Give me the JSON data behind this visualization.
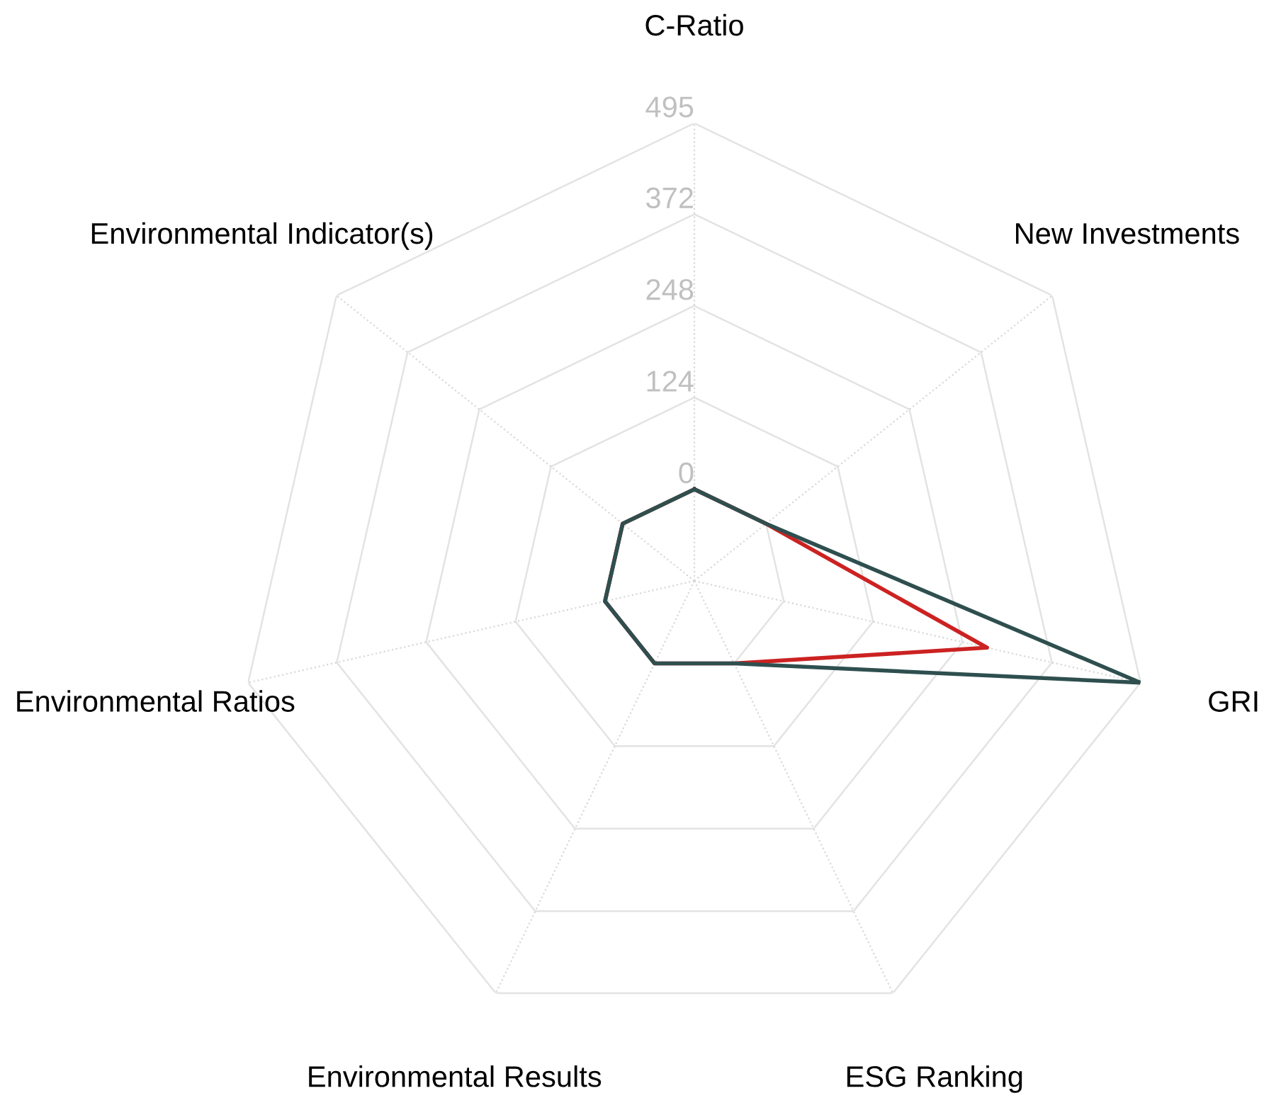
{
  "chart_data": {
    "type": "radar",
    "categories": [
      "C-Ratio",
      "New Investments",
      "GRI",
      "ESG Ranking",
      "Environmental Results",
      "Environmental Ratios",
      "Environmental Indicator(s)"
    ],
    "series": [
      {
        "color": "#cc2222",
        "values": [
          0,
          0,
          282,
          0,
          0,
          0,
          0
        ]
      },
      {
        "color": "#2f4f4f",
        "values": [
          0,
          0,
          495,
          0,
          0,
          0,
          0
        ]
      }
    ],
    "ylim": [
      -124,
      495
    ],
    "yticks": [
      0,
      124,
      248,
      372,
      495
    ],
    "grid": true,
    "marker": "none",
    "line_style": "solid"
  }
}
